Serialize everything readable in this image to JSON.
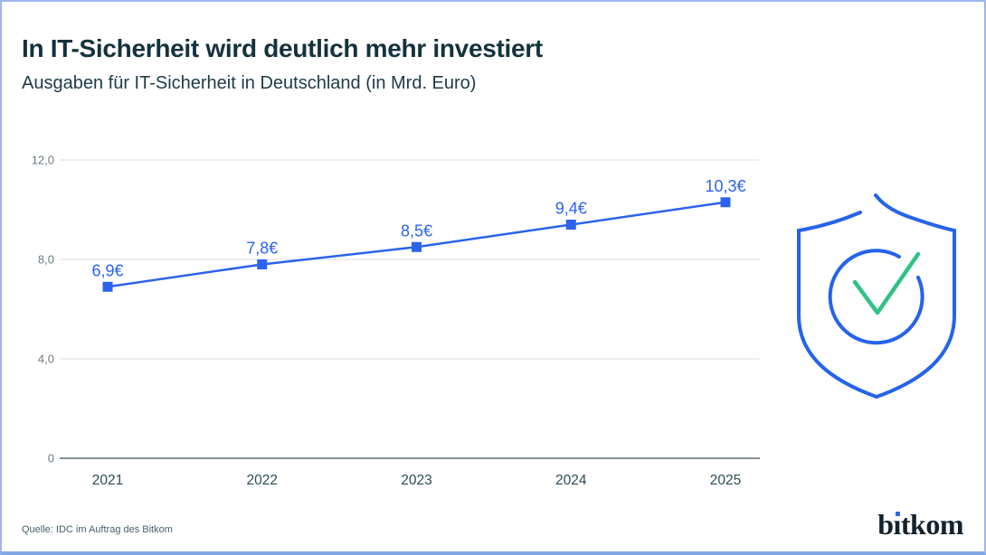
{
  "header": {
    "title": "In IT-Sicherheit wird deutlich mehr investiert",
    "subtitle": "Ausgaben für IT-Sicherheit in Deutschland (in Mrd. Euro)"
  },
  "chart_data": {
    "type": "line",
    "title": "Ausgaben für IT-Sicherheit in Deutschland (in Mrd. Euro)",
    "categories": [
      "2021",
      "2022",
      "2023",
      "2024",
      "2025"
    ],
    "series": [
      {
        "name": "Ausgaben für IT-Sicherheit (Mrd. Euro)",
        "values": [
          6.9,
          7.8,
          8.5,
          9.4,
          10.3
        ]
      }
    ],
    "point_labels": [
      "6,9€",
      "7,8€",
      "8,5€",
      "9,4€",
      "10,3€"
    ],
    "y_ticks": [
      {
        "value": 0,
        "label": "0"
      },
      {
        "value": 4,
        "label": "4,0"
      },
      {
        "value": 8,
        "label": "8,0"
      },
      {
        "value": 12,
        "label": "12,0"
      }
    ],
    "ylim": [
      0,
      12
    ],
    "grid": "horizontal",
    "legend": "none",
    "marker": "square",
    "line_color": "#2b62ef"
  },
  "icons": {
    "shield_check": "shield-with-checkmark",
    "shield_color": "#2563eb",
    "check_color": "#30c285"
  },
  "footer": {
    "source": "Quelle: IDC im Auftrag des Bitkom",
    "logo_text": "bitkom"
  },
  "colors": {
    "accent_blue": "#2b62ef",
    "accent_green": "#30c285",
    "title_text": "#14323e",
    "axis_tick_text": "#6b7a82",
    "x_label_text": "#2e4a55",
    "gridline": "#dcdfe1",
    "zero_axis": "#858f96",
    "page_border": "#9bb6ec",
    "bottom_bar": "#83a8e8"
  }
}
